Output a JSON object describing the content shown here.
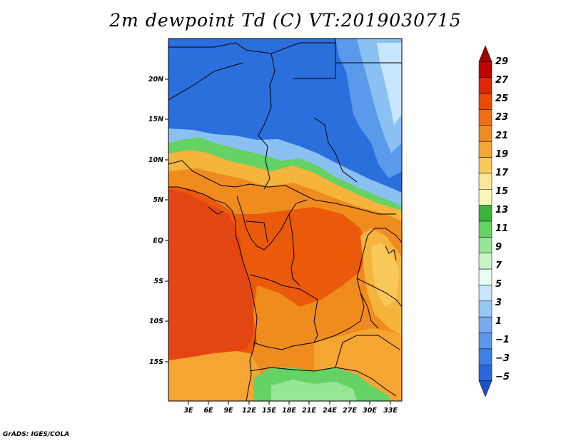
{
  "title": "2m dewpoint Td (C) VT:2019030715",
  "credit": "GrADS: IGES/COLA",
  "map": {
    "lat_labels": [
      "20N",
      "15N",
      "10N",
      "5N",
      "EQ",
      "5S",
      "10S",
      "15S"
    ],
    "lon_labels": [
      "3E",
      "6E",
      "9E",
      "12E",
      "15E",
      "18E",
      "21E",
      "24E",
      "27E",
      "30E",
      "33E"
    ]
  },
  "colorbar": {
    "labels": [
      "29",
      "27",
      "25",
      "23",
      "21",
      "19",
      "17",
      "15",
      "13",
      "11",
      "9",
      "7",
      "5",
      "3",
      "1",
      "−1",
      "−3",
      "−5"
    ],
    "colors": [
      "#a00000",
      "#c00000",
      "#dc2800",
      "#eb4b00",
      "#f06e14",
      "#f08c1e",
      "#f5a532",
      "#fac85a",
      "#fae696",
      "#f8f8b4",
      "#3cb43c",
      "#64d264",
      "#96e696",
      "#c8f5c8",
      "#e6fff0",
      "#c8e6ff",
      "#96c8f5",
      "#78aaf0",
      "#5a96eb",
      "#3c82e6",
      "#2868dc",
      "#1e50c8"
    ]
  }
}
